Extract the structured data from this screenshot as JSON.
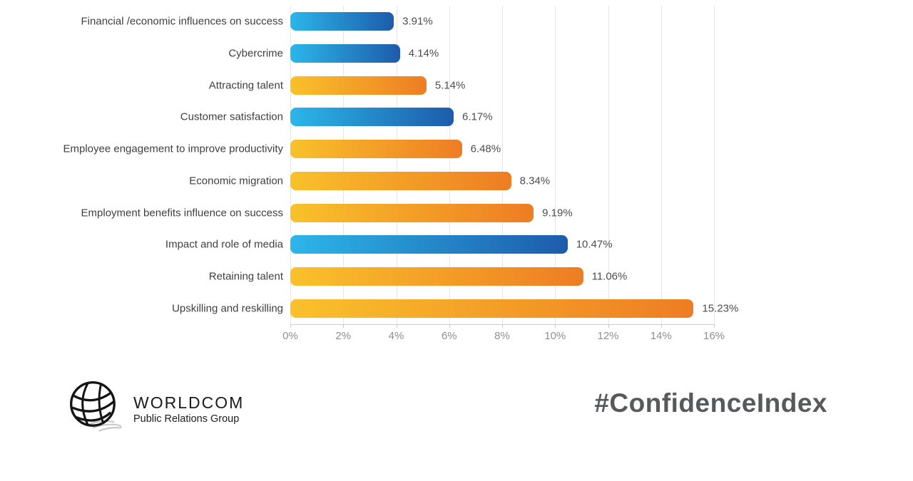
{
  "chart_data": {
    "type": "bar",
    "orientation": "horizontal",
    "title": "",
    "xlabel": "",
    "ylabel": "",
    "grid": true,
    "xlim": [
      0,
      16
    ],
    "x_ticks": [
      "0%",
      "2%",
      "4%",
      "6%",
      "8%",
      "10%",
      "12%",
      "14%",
      "16%"
    ],
    "categories": [
      "Financial /economic influences on success",
      "Cybercrime",
      "Attracting talent",
      "Customer satisfaction",
      "Employee engagement to improve productivity",
      "Economic migration",
      "Employment benefits influence on success",
      "Impact and role of media",
      "Retaining talent",
      "Upskilling and reskilling"
    ],
    "values": [
      3.91,
      4.14,
      5.14,
      6.17,
      6.48,
      8.34,
      9.19,
      10.47,
      11.06,
      15.23
    ],
    "value_labels": [
      "3.91%",
      "4.14%",
      "5.14%",
      "6.17%",
      "6.48%",
      "8.34%",
      "9.19%",
      "10.47%",
      "11.06%",
      "15.23%"
    ],
    "bar_colors": [
      "blue",
      "blue",
      "orange",
      "blue",
      "orange",
      "orange",
      "orange",
      "blue",
      "orange",
      "orange"
    ]
  },
  "colors": {
    "blue_gradient_start": "#2cb6e9",
    "blue_gradient_end": "#1d5cab",
    "orange_gradient_start": "#f9c12b",
    "orange_gradient_end": "#ee7d23",
    "gridline": "#e6e6e6",
    "axis_text": "#8f8f8f",
    "label_text": "#3f3f3f",
    "hashtag_text": "#58595b"
  },
  "footer": {
    "logo_title": "WORLDCOM",
    "logo_subtitle": "Public Relations Group",
    "hashtag": "#ConfidenceIndex"
  }
}
